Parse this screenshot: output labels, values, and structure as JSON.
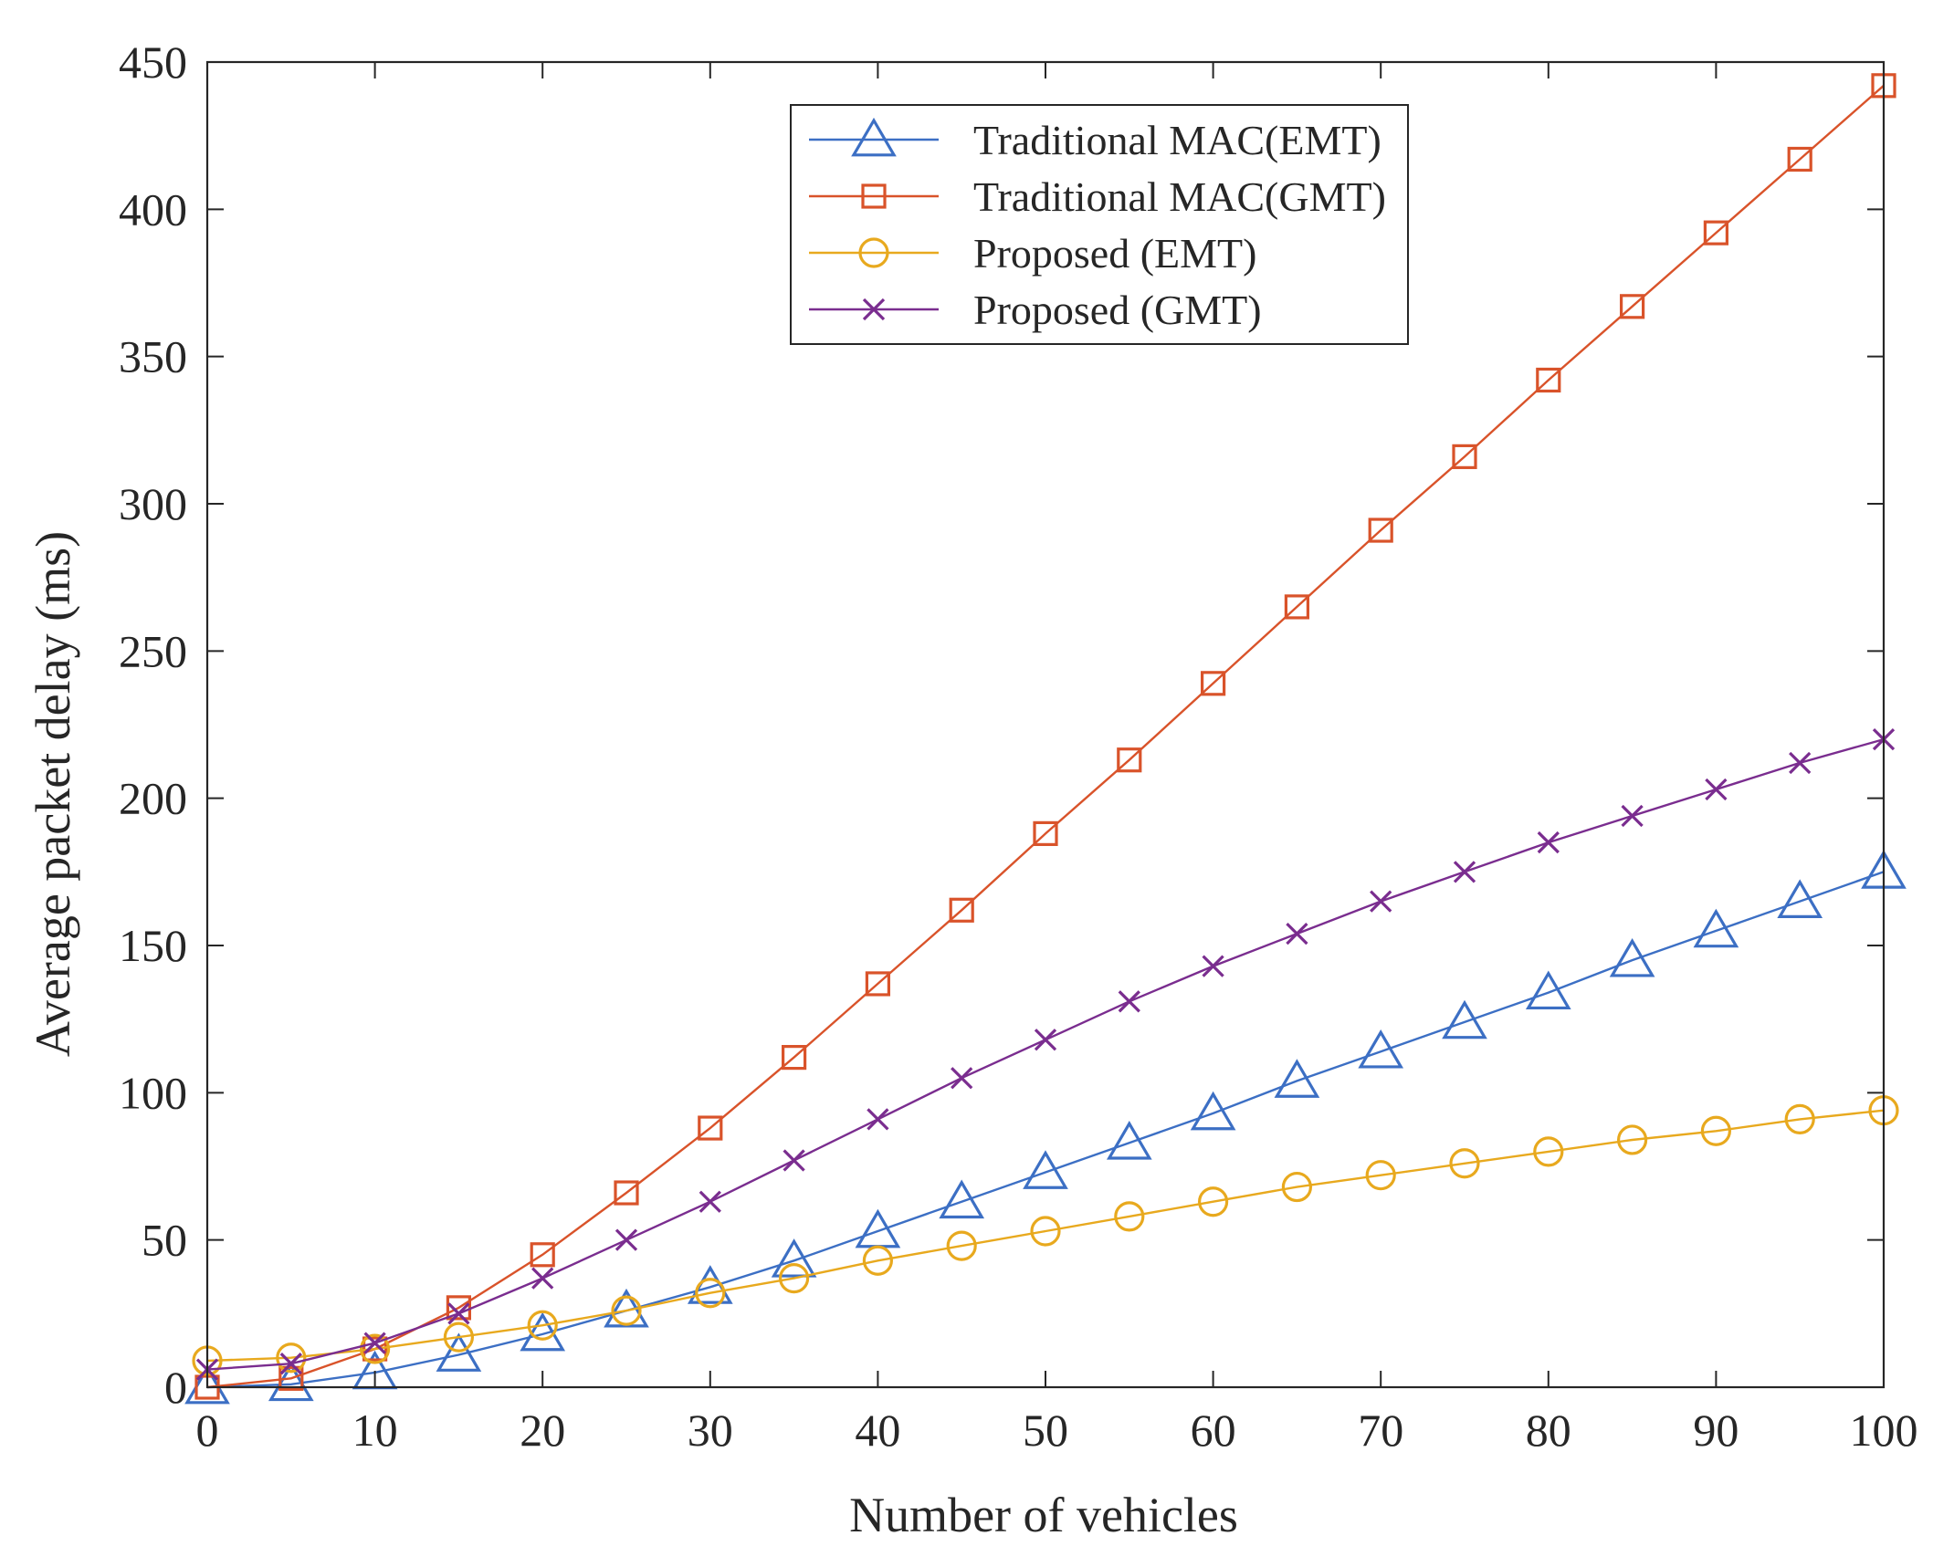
{
  "chart_data": {
    "type": "line",
    "title": "",
    "xlabel": "Number of vehicles",
    "ylabel": "Average packet delay (ms)",
    "xlim": [
      0,
      100
    ],
    "ylim": [
      0,
      450
    ],
    "xticks": [
      0,
      10,
      20,
      30,
      40,
      50,
      60,
      70,
      80,
      90,
      100
    ],
    "yticks": [
      0,
      50,
      100,
      150,
      200,
      250,
      300,
      350,
      400,
      450
    ],
    "xtick_labels": [
      "0",
      "10",
      "20",
      "30",
      "40",
      "50",
      "60",
      "70",
      "80",
      "90",
      "100"
    ],
    "ytick_labels": [
      "0",
      "50",
      "100",
      "150",
      "200",
      "250",
      "300",
      "350",
      "400",
      "450"
    ],
    "grid": false,
    "legend_position": "top-center",
    "x": [
      0,
      5,
      10,
      15,
      20,
      25,
      30,
      35,
      40,
      45,
      50,
      55,
      60,
      65,
      70,
      75,
      80,
      85,
      90,
      95,
      100
    ],
    "series": [
      {
        "name": "Traditional MAC(EMT)",
        "color": "#3C6FC4",
        "marker": "triangle",
        "values": [
          0,
          1,
          5,
          11,
          18,
          26,
          34,
          43,
          53,
          63,
          73,
          83,
          93,
          104,
          114,
          124,
          134,
          145,
          155,
          165,
          175
        ]
      },
      {
        "name": "Traditional MAC(GMT)",
        "color": "#D9532A",
        "marker": "square",
        "values": [
          0,
          3,
          13,
          27,
          45,
          66,
          88,
          112,
          137,
          162,
          188,
          213,
          239,
          265,
          291,
          316,
          342,
          367,
          392,
          417,
          442
        ]
      },
      {
        "name": "Proposed (EMT)",
        "color": "#E8A91E",
        "marker": "circle",
        "values": [
          9,
          10,
          13,
          17,
          21,
          26,
          32,
          37,
          43,
          48,
          53,
          58,
          63,
          68,
          72,
          76,
          80,
          84,
          87,
          91,
          94
        ]
      },
      {
        "name": "Proposed (GMT)",
        "color": "#7A2D8F",
        "marker": "x",
        "values": [
          6,
          8,
          15,
          25,
          37,
          50,
          63,
          77,
          91,
          105,
          118,
          131,
          143,
          154,
          165,
          175,
          185,
          194,
          203,
          212,
          220
        ]
      }
    ]
  }
}
